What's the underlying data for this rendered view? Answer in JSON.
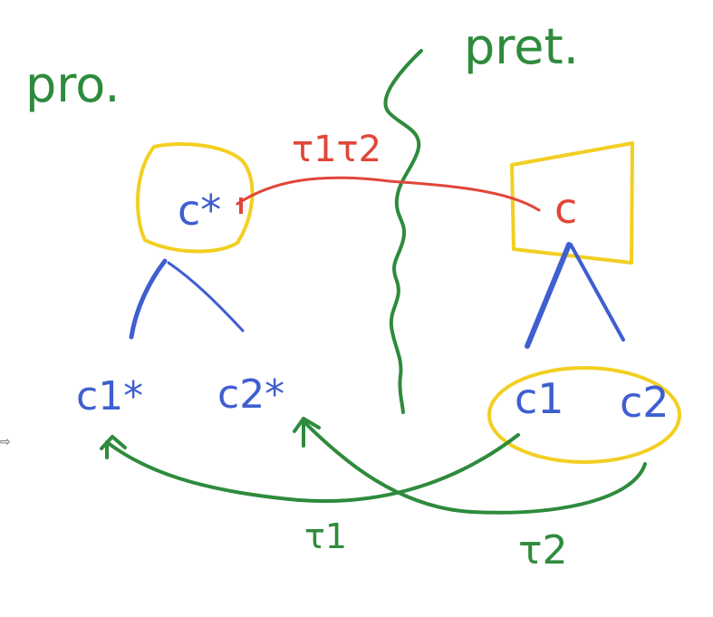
{
  "labels": {
    "left_title": "pro.",
    "right_title": "pret.",
    "top_node_left": "c*",
    "top_node_right": "c",
    "child_left_1": "c1*",
    "child_left_2": "c2*",
    "child_right_1": "c1",
    "child_right_2": "c2",
    "map_top": "τ1τ2",
    "map_bottom_left": "τ1",
    "map_bottom_right": "τ2",
    "arrow_glyph": "⇨"
  },
  "colors": {
    "green": "#2e8b3c",
    "blue": "#3f5fd0",
    "red": "#e0463a",
    "yellow": "#f2cf22",
    "gray": "#555555"
  }
}
